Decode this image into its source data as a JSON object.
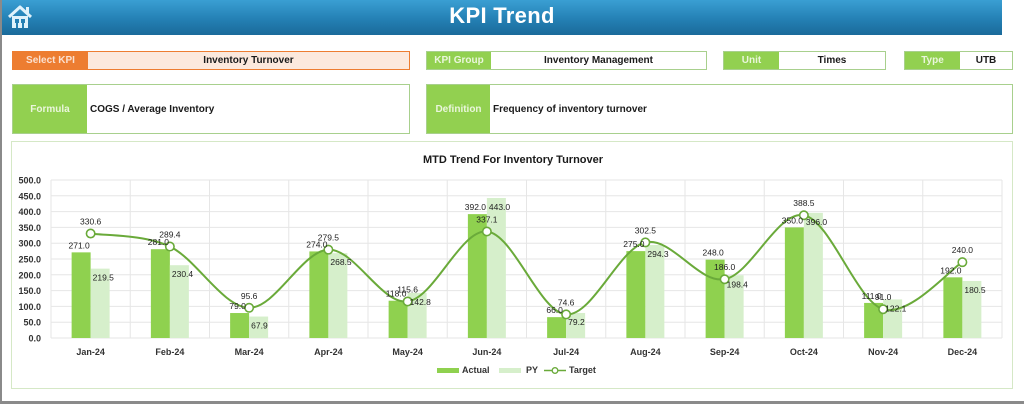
{
  "header": {
    "title": "KPI Trend",
    "home_icon": "home-icon"
  },
  "fields": {
    "select_kpi": {
      "label": "Select KPI",
      "value": "Inventory Turnover"
    },
    "kpi_group": {
      "label": "KPI Group",
      "value": "Inventory Management"
    },
    "unit": {
      "label": "Unit",
      "value": "Times"
    },
    "type": {
      "label": "Type",
      "value": "UTB"
    },
    "formula": {
      "label": "Formula",
      "value": "COGS / Average Inventory"
    },
    "definition": {
      "label": "Definition",
      "value": "Frequency of inventory turnover"
    }
  },
  "colors": {
    "header_blue": "#2480b4",
    "kpi_orange": "#ed7d31",
    "label_green": "#92d050",
    "actual_bar": "#8fd14f",
    "py_bar": "#d6efcb",
    "target_line": "#6aaa3a"
  },
  "chart_data": {
    "type": "bar",
    "title": "MTD Trend For Inventory Turnover",
    "xlabel": "",
    "ylabel": "",
    "ylim": [
      0,
      500
    ],
    "yticks": [
      "0.0",
      "50.0",
      "100.0",
      "150.0",
      "200.0",
      "250.0",
      "300.0",
      "350.0",
      "400.0",
      "450.0",
      "500.0"
    ],
    "grid": true,
    "legend_position": "bottom",
    "categories": [
      "Jan-24",
      "Feb-24",
      "Mar-24",
      "Apr-24",
      "May-24",
      "Jun-24",
      "Jul-24",
      "Aug-24",
      "Sep-24",
      "Oct-24",
      "Nov-24",
      "Dec-24"
    ],
    "series": [
      {
        "name": "Actual",
        "type": "bar",
        "values": [
          271.0,
          281.0,
          79.0,
          274.0,
          118.0,
          392.0,
          66.0,
          275.0,
          248.0,
          350.0,
          111.0,
          192.0
        ]
      },
      {
        "name": "PY",
        "type": "bar",
        "values": [
          219.5,
          230.4,
          67.9,
          268.5,
          142.8,
          443.0,
          79.2,
          294.3,
          198.4,
          396.0,
          122.1,
          180.5
        ]
      },
      {
        "name": "Target",
        "type": "line",
        "values": [
          330.6,
          289.4,
          95.6,
          279.5,
          115.6,
          337.1,
          74.6,
          302.5,
          186.0,
          388.5,
          91.0,
          240.0
        ]
      }
    ]
  }
}
